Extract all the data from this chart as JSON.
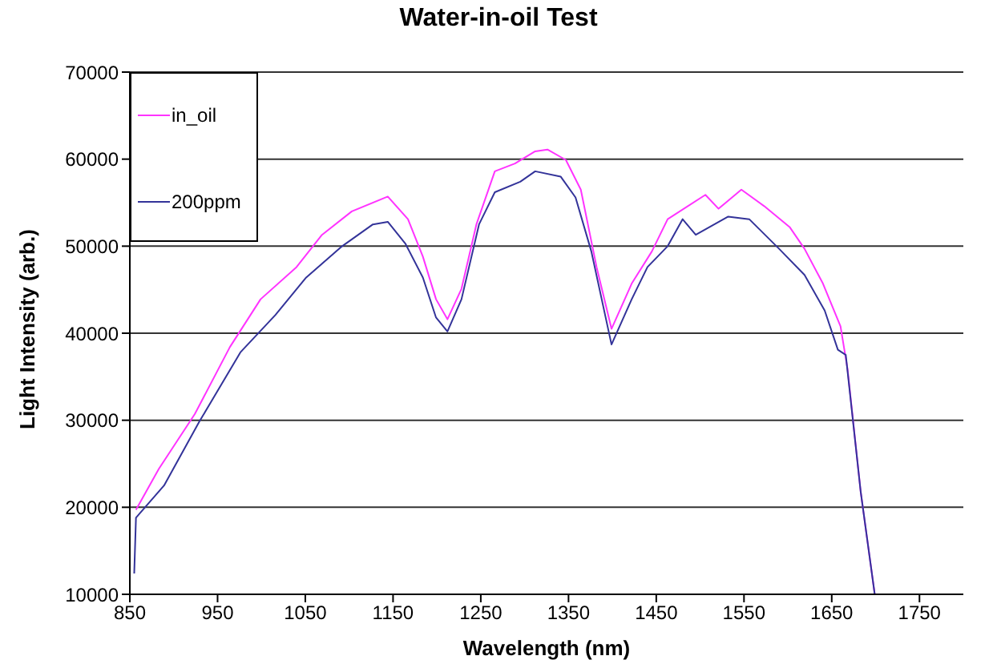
{
  "chart_data": {
    "type": "line",
    "title": "Water-in-oil Test",
    "xlabel": "Wavelength (nm)",
    "ylabel": "Light Intensity (arb.)",
    "xlim": [
      850,
      1800
    ],
    "xticks": [
      850,
      950,
      1050,
      1150,
      1250,
      1350,
      1450,
      1550,
      1650,
      1750
    ],
    "ylim": [
      10000,
      70000
    ],
    "yticks": [
      10000,
      20000,
      30000,
      40000,
      50000,
      60000,
      70000
    ],
    "grid": "y",
    "legend": "top left",
    "marker": "none",
    "line_style": "solid",
    "series": [
      {
        "name": "in_oil",
        "color": "#ff33ff",
        "x": [
          857,
          883,
          924,
          964,
          999,
          1040,
          1069,
          1103,
          1144,
          1167,
          1184,
          1199,
          1212,
          1228,
          1245,
          1266,
          1289,
          1312,
          1326,
          1347,
          1364,
          1382,
          1399,
          1422,
          1445,
          1463,
          1506,
          1521,
          1547,
          1573,
          1602,
          1619,
          1640,
          1660,
          1668,
          1683,
          1699
        ],
        "values": [
          19700,
          24400,
          30700,
          38400,
          43900,
          47600,
          51300,
          54000,
          55700,
          53100,
          48800,
          43900,
          41600,
          45100,
          52500,
          58600,
          59500,
          60900,
          61100,
          59900,
          56500,
          47600,
          40500,
          45700,
          49400,
          53100,
          55900,
          54300,
          56500,
          54600,
          52200,
          49700,
          45700,
          40800,
          35900,
          21800,
          10000
        ]
      },
      {
        "name": "200ppm",
        "color": "#333399",
        "x": [
          855,
          857,
          889,
          929,
          976,
          1016,
          1051,
          1092,
          1127,
          1144,
          1164,
          1184,
          1199,
          1212,
          1228,
          1248,
          1266,
          1295,
          1312,
          1341,
          1358,
          1376,
          1399,
          1422,
          1440,
          1463,
          1480,
          1495,
          1532,
          1556,
          1590,
          1619,
          1642,
          1657,
          1666,
          1683,
          1699
        ],
        "values": [
          12400,
          18800,
          22500,
          29800,
          37800,
          42100,
          46400,
          50000,
          52500,
          52800,
          50300,
          46400,
          41800,
          40200,
          43900,
          52500,
          56200,
          57400,
          58600,
          58000,
          55600,
          49400,
          38700,
          43900,
          47600,
          50000,
          53100,
          51300,
          53400,
          53100,
          49700,
          46700,
          42600,
          38100,
          37500,
          21800,
          10000
        ]
      }
    ]
  }
}
